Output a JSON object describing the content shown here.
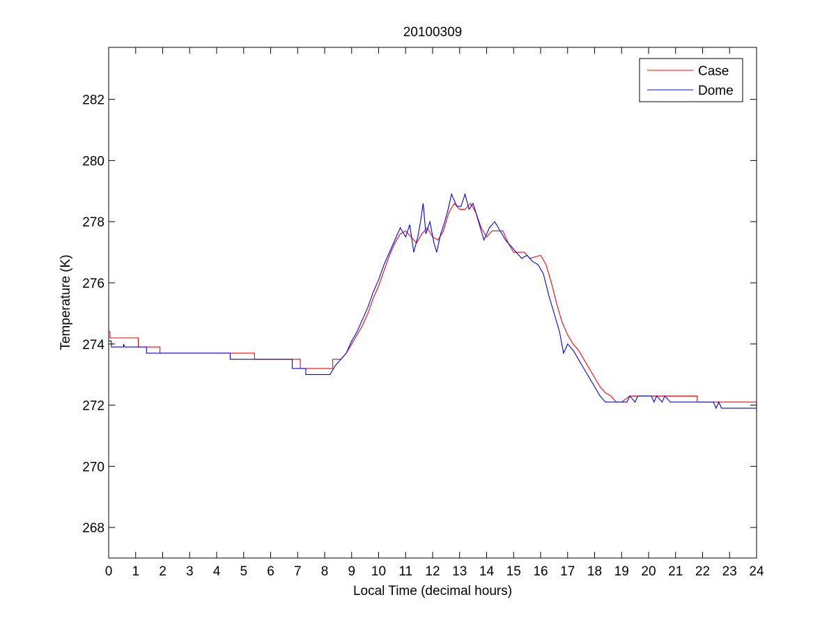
{
  "chart_data": {
    "type": "line",
    "title": "20100309",
    "xlabel": "Local Time (decimal hours)",
    "ylabel": "Temperature (K)",
    "xlim": [
      0,
      24
    ],
    "ylim": [
      267,
      283.7
    ],
    "xticks": [
      0,
      1,
      2,
      3,
      4,
      5,
      6,
      7,
      8,
      9,
      10,
      11,
      12,
      13,
      14,
      15,
      16,
      17,
      18,
      19,
      20,
      21,
      22,
      23,
      24
    ],
    "yticks": [
      268,
      270,
      272,
      274,
      276,
      278,
      280,
      282
    ],
    "grid": false,
    "legend_position": "top-right",
    "series": [
      {
        "name": "Case",
        "color": "#ff0000",
        "points": [
          [
            0,
            274.4
          ],
          [
            0.05,
            274.4
          ],
          [
            0.05,
            274.2
          ],
          [
            1.1,
            274.2
          ],
          [
            1.1,
            273.9
          ],
          [
            1.9,
            273.9
          ],
          [
            1.9,
            273.7
          ],
          [
            5.4,
            273.7
          ],
          [
            5.4,
            273.5
          ],
          [
            7.1,
            273.5
          ],
          [
            7.1,
            273.2
          ],
          [
            8.3,
            273.2
          ],
          [
            8.3,
            273.5
          ],
          [
            8.6,
            273.5
          ],
          [
            8.8,
            273.7
          ],
          [
            9.0,
            274.0
          ],
          [
            9.2,
            274.3
          ],
          [
            9.4,
            274.6
          ],
          [
            9.6,
            275.0
          ],
          [
            9.8,
            275.5
          ],
          [
            10.0,
            275.9
          ],
          [
            10.2,
            276.4
          ],
          [
            10.4,
            276.9
          ],
          [
            10.6,
            277.3
          ],
          [
            10.8,
            277.6
          ],
          [
            11.0,
            277.7
          ],
          [
            11.2,
            277.5
          ],
          [
            11.4,
            277.3
          ],
          [
            11.6,
            277.6
          ],
          [
            11.8,
            277.8
          ],
          [
            12.0,
            277.5
          ],
          [
            12.2,
            277.4
          ],
          [
            12.4,
            277.7
          ],
          [
            12.6,
            278.3
          ],
          [
            12.8,
            278.6
          ],
          [
            13.0,
            278.4
          ],
          [
            13.2,
            278.4
          ],
          [
            13.4,
            278.6
          ],
          [
            13.6,
            278.3
          ],
          [
            13.8,
            277.8
          ],
          [
            14.0,
            277.5
          ],
          [
            14.2,
            277.7
          ],
          [
            14.6,
            277.7
          ],
          [
            14.8,
            277.3
          ],
          [
            15.0,
            277.0
          ],
          [
            15.4,
            277.0
          ],
          [
            15.6,
            276.8
          ],
          [
            16.0,
            276.9
          ],
          [
            16.2,
            276.6
          ],
          [
            16.4,
            276.0
          ],
          [
            16.6,
            275.3
          ],
          [
            16.8,
            274.7
          ],
          [
            17.0,
            274.3
          ],
          [
            17.2,
            274.0
          ],
          [
            17.4,
            273.8
          ],
          [
            17.6,
            273.5
          ],
          [
            17.8,
            273.2
          ],
          [
            18.0,
            272.9
          ],
          [
            18.2,
            272.6
          ],
          [
            18.4,
            272.4
          ],
          [
            18.6,
            272.3
          ],
          [
            18.8,
            272.1
          ],
          [
            19.0,
            272.1
          ],
          [
            19.3,
            272.3
          ],
          [
            21.8,
            272.3
          ],
          [
            21.8,
            272.1
          ],
          [
            24,
            272.1
          ],
          [
            24,
            271.9
          ]
        ]
      },
      {
        "name": "Dome",
        "color": "#0000ff",
        "points": [
          [
            0,
            274.1
          ],
          [
            0.1,
            274.1
          ],
          [
            0.1,
            273.9
          ],
          [
            0.55,
            273.9
          ],
          [
            0.55,
            274.0
          ],
          [
            0.6,
            273.9
          ],
          [
            1.4,
            273.9
          ],
          [
            1.4,
            273.7
          ],
          [
            4.5,
            273.7
          ],
          [
            4.5,
            273.5
          ],
          [
            6.8,
            273.5
          ],
          [
            6.8,
            273.2
          ],
          [
            7.3,
            273.2
          ],
          [
            7.3,
            273.0
          ],
          [
            8.2,
            273.0
          ],
          [
            8.4,
            273.3
          ],
          [
            8.6,
            273.5
          ],
          [
            8.8,
            273.7
          ],
          [
            9.0,
            274.1
          ],
          [
            9.2,
            274.4
          ],
          [
            9.4,
            274.8
          ],
          [
            9.6,
            275.2
          ],
          [
            9.8,
            275.7
          ],
          [
            10.0,
            276.1
          ],
          [
            10.2,
            276.6
          ],
          [
            10.4,
            277.0
          ],
          [
            10.6,
            277.4
          ],
          [
            10.8,
            277.8
          ],
          [
            11.0,
            277.5
          ],
          [
            11.15,
            277.9
          ],
          [
            11.3,
            277.0
          ],
          [
            11.45,
            277.5
          ],
          [
            11.55,
            278.0
          ],
          [
            11.65,
            278.6
          ],
          [
            11.75,
            277.6
          ],
          [
            11.9,
            278.0
          ],
          [
            12.05,
            277.3
          ],
          [
            12.15,
            277.0
          ],
          [
            12.3,
            277.6
          ],
          [
            12.45,
            278.0
          ],
          [
            12.6,
            278.5
          ],
          [
            12.7,
            278.9
          ],
          [
            12.8,
            278.7
          ],
          [
            12.9,
            278.5
          ],
          [
            13.05,
            278.5
          ],
          [
            13.2,
            278.9
          ],
          [
            13.35,
            278.4
          ],
          [
            13.5,
            278.6
          ],
          [
            13.7,
            278.0
          ],
          [
            13.9,
            277.4
          ],
          [
            14.1,
            277.8
          ],
          [
            14.3,
            278.0
          ],
          [
            14.5,
            277.7
          ],
          [
            14.7,
            277.4
          ],
          [
            14.9,
            277.2
          ],
          [
            15.1,
            277.0
          ],
          [
            15.3,
            276.8
          ],
          [
            15.5,
            276.9
          ],
          [
            15.7,
            276.7
          ],
          [
            15.9,
            276.6
          ],
          [
            16.1,
            276.3
          ],
          [
            16.3,
            275.6
          ],
          [
            16.5,
            275.0
          ],
          [
            16.7,
            274.4
          ],
          [
            16.85,
            273.7
          ],
          [
            17.0,
            274.0
          ],
          [
            17.2,
            273.8
          ],
          [
            17.4,
            273.5
          ],
          [
            17.6,
            273.2
          ],
          [
            17.8,
            272.9
          ],
          [
            18.0,
            272.6
          ],
          [
            18.2,
            272.3
          ],
          [
            18.4,
            272.1
          ],
          [
            19.2,
            272.1
          ],
          [
            19.3,
            272.3
          ],
          [
            19.5,
            272.1
          ],
          [
            19.6,
            272.3
          ],
          [
            20.1,
            272.3
          ],
          [
            20.2,
            272.1
          ],
          [
            20.3,
            272.3
          ],
          [
            20.5,
            272.1
          ],
          [
            20.6,
            272.3
          ],
          [
            20.8,
            272.1
          ],
          [
            22.4,
            272.1
          ],
          [
            22.5,
            271.9
          ],
          [
            22.6,
            272.1
          ],
          [
            22.7,
            271.9
          ],
          [
            24,
            271.9
          ]
        ]
      }
    ]
  }
}
